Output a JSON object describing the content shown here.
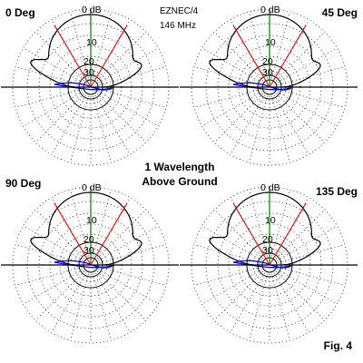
{
  "figure": {
    "caption": "Fig. 4",
    "center_title_line1": "1 Wavelength",
    "center_title_line2": "Above Ground",
    "software_line1": "EZNEC/4",
    "software_line2": "146 MHz"
  },
  "db_labels": [
    "0 dB",
    "10",
    "20",
    "30"
  ],
  "panels": [
    {
      "id": "p0",
      "label": "0 Deg"
    },
    {
      "id": "p45",
      "label": "45 Deg"
    },
    {
      "id": "p90",
      "label": "90 Deg"
    },
    {
      "id": "p135",
      "label": "135 Deg"
    }
  ],
  "colors": {
    "grid": "#000000",
    "pattern": "#000000",
    "beamwidth_lines": "#ff0000",
    "zenith_line": "#008000",
    "blue_lobe": "#0000ff"
  }
}
